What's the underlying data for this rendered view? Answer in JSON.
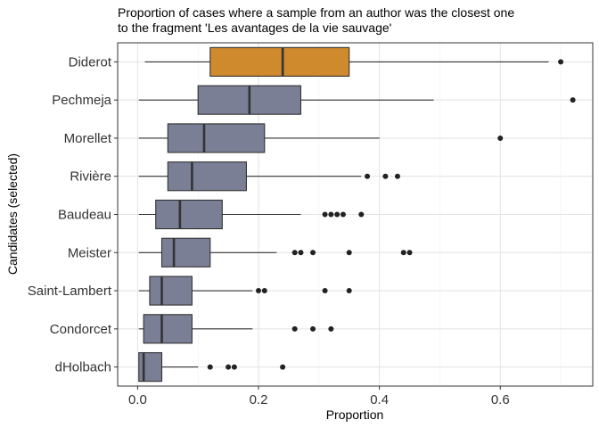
{
  "chart_data": {
    "type": "boxplot",
    "title_lines": [
      "Proportion of cases where a sample from an author was the closest one",
      "to the fragment 'Les avantages de la vie sauvage'"
    ],
    "xlabel": "Proportion",
    "ylabel": "Candidates (selected)",
    "xlim": [
      -0.033,
      0.753
    ],
    "xticks": [
      0.0,
      0.2,
      0.4,
      0.6
    ],
    "xtick_labels": [
      "0.0",
      "0.2",
      "0.4",
      "0.6"
    ],
    "grid": true,
    "highlight_color": "#d08a2e",
    "default_color": "#7a7f95",
    "series": [
      {
        "name": "Diderot",
        "highlight": true,
        "whisker_low": 0.012,
        "q1": 0.12,
        "median": 0.24,
        "q3": 0.35,
        "whisker_high": 0.68,
        "outliers": [
          0.7
        ]
      },
      {
        "name": "Pechmeja",
        "highlight": false,
        "whisker_low": 0.002,
        "q1": 0.1,
        "median": 0.185,
        "q3": 0.27,
        "whisker_high": 0.49,
        "outliers": [
          0.72
        ]
      },
      {
        "name": "Morellet",
        "highlight": false,
        "whisker_low": 0.002,
        "q1": 0.05,
        "median": 0.11,
        "q3": 0.21,
        "whisker_high": 0.4,
        "outliers": [
          0.6
        ]
      },
      {
        "name": "Rivière",
        "highlight": false,
        "whisker_low": 0.002,
        "q1": 0.05,
        "median": 0.09,
        "q3": 0.18,
        "whisker_high": 0.37,
        "outliers": [
          0.38,
          0.41,
          0.43
        ]
      },
      {
        "name": "Baudeau",
        "highlight": false,
        "whisker_low": 0.002,
        "q1": 0.03,
        "median": 0.07,
        "q3": 0.14,
        "whisker_high": 0.27,
        "outliers": [
          0.31,
          0.32,
          0.33,
          0.34,
          0.37
        ]
      },
      {
        "name": "Meister",
        "highlight": false,
        "whisker_low": 0.002,
        "q1": 0.04,
        "median": 0.06,
        "q3": 0.12,
        "whisker_high": 0.23,
        "outliers": [
          0.26,
          0.27,
          0.29,
          0.35,
          0.44,
          0.45
        ]
      },
      {
        "name": "Saint-Lambert",
        "highlight": false,
        "whisker_low": 0.002,
        "q1": 0.02,
        "median": 0.04,
        "q3": 0.09,
        "whisker_high": 0.19,
        "outliers": [
          0.2,
          0.21,
          0.31,
          0.35
        ]
      },
      {
        "name": "Condorcet",
        "highlight": false,
        "whisker_low": 0.002,
        "q1": 0.01,
        "median": 0.04,
        "q3": 0.09,
        "whisker_high": 0.19,
        "outliers": [
          0.26,
          0.29,
          0.32
        ]
      },
      {
        "name": "dHolbach",
        "highlight": false,
        "whisker_low": 0.002,
        "q1": 0.002,
        "median": 0.01,
        "q3": 0.04,
        "whisker_high": 0.1,
        "outliers": [
          0.12,
          0.15,
          0.16,
          0.24
        ]
      }
    ]
  }
}
